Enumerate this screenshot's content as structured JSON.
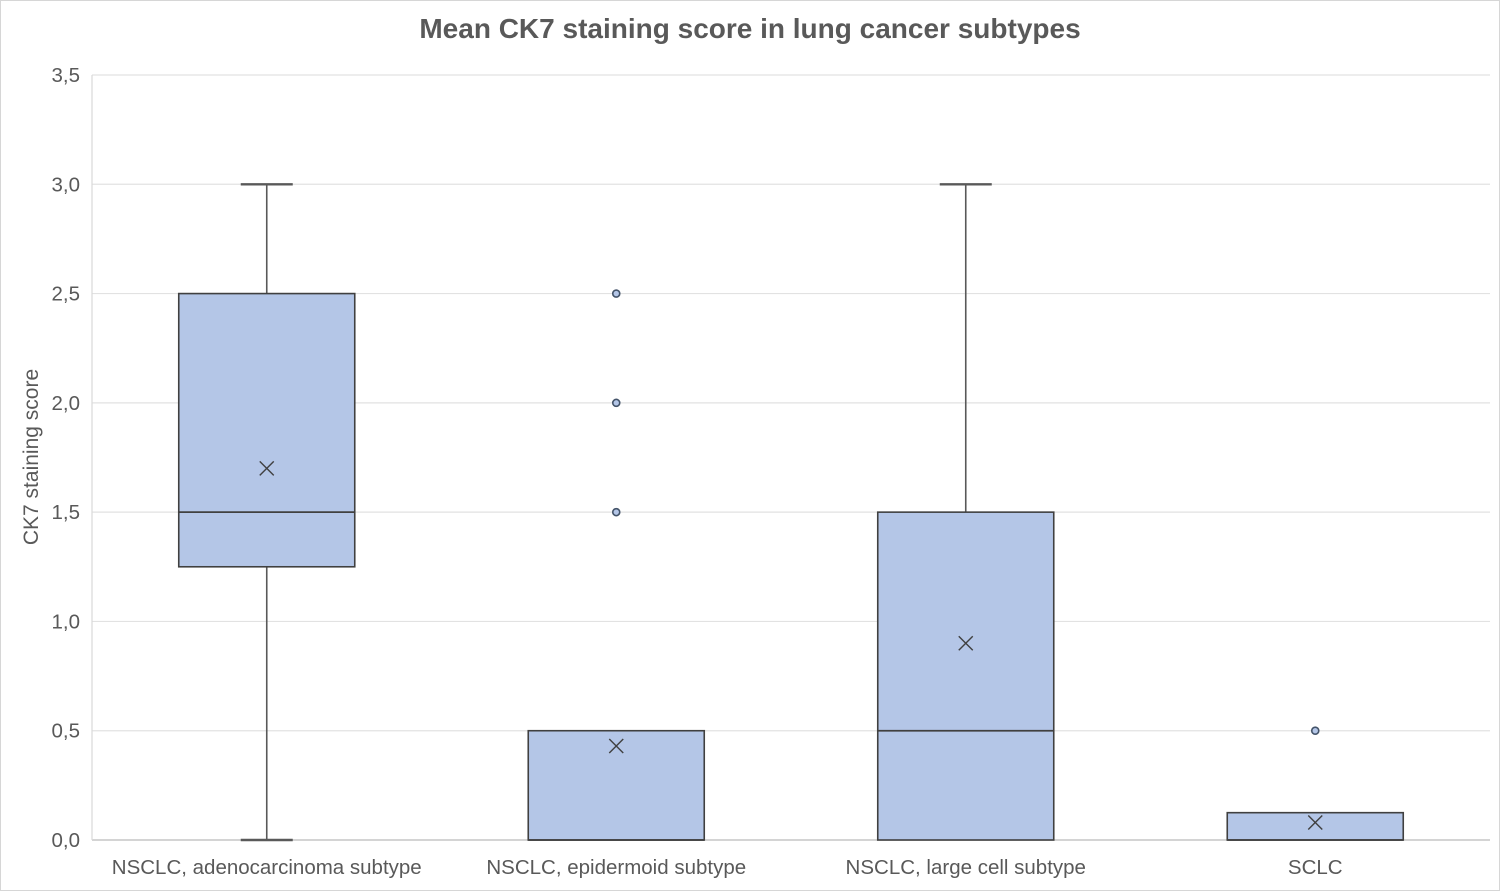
{
  "chart_data": {
    "type": "boxplot",
    "title": "Mean CK7 staining score in lung cancer subtypes",
    "ylabel": "CK7 staining score",
    "xlabel": "",
    "ylim": [
      0,
      3.5
    ],
    "ytick_step": 0.5,
    "grid": true,
    "legend": "none",
    "yticks": [
      {
        "value": 0.0,
        "label": "0,0"
      },
      {
        "value": 0.5,
        "label": "0,5"
      },
      {
        "value": 1.0,
        "label": "1,0"
      },
      {
        "value": 1.5,
        "label": "1,5"
      },
      {
        "value": 2.0,
        "label": "2,0"
      },
      {
        "value": 2.5,
        "label": "2,5"
      },
      {
        "value": 3.0,
        "label": "3,0"
      },
      {
        "value": 3.5,
        "label": "3,5"
      }
    ],
    "categories": [
      "NSCLC, adenocarcinoma subtype",
      "NSCLC, epidermoid subtype",
      "NSCLC, large cell subtype",
      "SCLC"
    ],
    "series": [
      {
        "name": "NSCLC, adenocarcinoma subtype",
        "whisker_low": 0.0,
        "q1": 1.25,
        "median": 1.5,
        "q3": 2.5,
        "whisker_high": 3.0,
        "mean": 1.7,
        "outliers": []
      },
      {
        "name": "NSCLC, epidermoid subtype",
        "whisker_low": 0.0,
        "q1": 0.0,
        "median": 0.0,
        "q3": 0.5,
        "whisker_high": 0.5,
        "mean": 0.43,
        "outliers": [
          1.5,
          2.0,
          2.5
        ]
      },
      {
        "name": "NSCLC, large cell subtype",
        "whisker_low": 0.0,
        "q1": 0.0,
        "median": 0.5,
        "q3": 1.5,
        "whisker_high": 3.0,
        "mean": 0.9,
        "outliers": []
      },
      {
        "name": "SCLC",
        "whisker_low": 0.0,
        "q1": 0.0,
        "median": 0.0,
        "q3": 0.125,
        "whisker_high": 0.125,
        "mean": 0.08,
        "outliers": [
          0.5
        ]
      }
    ],
    "colors": {
      "box_fill": "#b4c6e7",
      "box_border": "#404040",
      "median_line": "#404040",
      "whisker": "#595959",
      "mean_marker": "#404040",
      "outlier_stroke": "#44546a",
      "outlier_fill": "#b4c6e7",
      "gridline": "#e2e2e2",
      "axis_line": "#c6c6c6",
      "left_axis_line": "#d9d9d9",
      "text": "#595959"
    }
  }
}
